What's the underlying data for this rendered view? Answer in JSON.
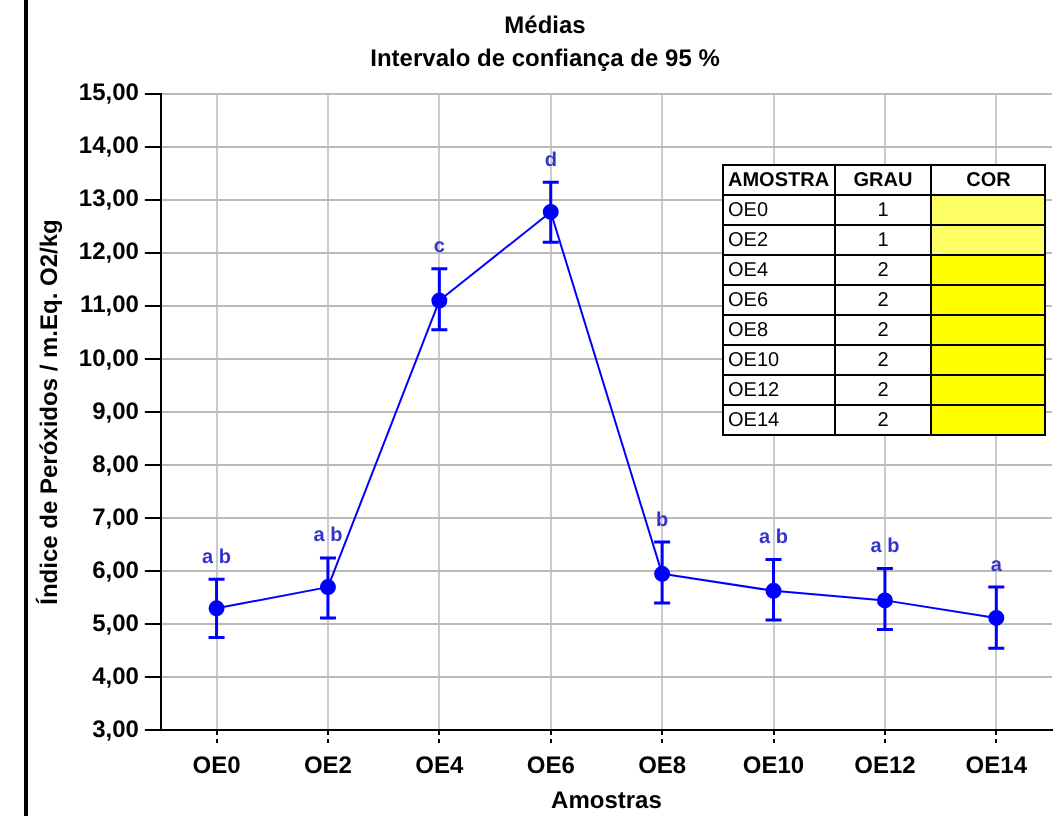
{
  "chart_data": [
    {
      "type": "line",
      "title": "Médias",
      "subtitle": "Intervalo de confiança de 95 %",
      "xlabel": "Amostras",
      "ylabel": "Índice de Peróxidos / m.Eq. O2/kg",
      "categories": [
        "OE0",
        "OE2",
        "OE4",
        "OE6",
        "OE8",
        "OE10",
        "OE12",
        "OE14"
      ],
      "series": [
        {
          "color": "#0000ff",
          "values": [
            5.3,
            5.7,
            11.1,
            12.77,
            5.95,
            5.63,
            5.45,
            5.12
          ],
          "errors": [
            [
              4.75,
              5.85
            ],
            [
              5.12,
              6.25
            ],
            [
              10.55,
              11.7
            ],
            [
              12.2,
              13.33
            ],
            [
              5.4,
              6.55
            ],
            [
              5.08,
              6.22
            ],
            [
              4.9,
              6.05
            ],
            [
              4.55,
              5.7
            ]
          ]
        }
      ],
      "ylim": [
        3,
        15
      ],
      "yticks": [
        {
          "value": 3,
          "label": "3,00"
        },
        {
          "value": 4,
          "label": "4,00"
        },
        {
          "value": 5,
          "label": "5,00"
        },
        {
          "value": 6,
          "label": "6,00"
        },
        {
          "value": 7,
          "label": "7,00"
        },
        {
          "value": 8,
          "label": "8,00"
        },
        {
          "value": 9,
          "label": "9,00"
        },
        {
          "value": 10,
          "label": "10,00"
        },
        {
          "value": 11,
          "label": "11,00"
        },
        {
          "value": 12,
          "label": "12,00"
        },
        {
          "value": 13,
          "label": "13,00"
        },
        {
          "value": 14,
          "label": "14,00"
        },
        {
          "value": 15,
          "label": "15,00"
        }
      ],
      "annotations": [
        {
          "text": "a b",
          "x": "OE0",
          "y": 5.85
        },
        {
          "text": "a b",
          "x": "OE2",
          "y": 6.25
        },
        {
          "text": "c",
          "x": "OE4",
          "y": 11.7
        },
        {
          "text": "d",
          "x": "OE6",
          "y": 13.33
        },
        {
          "text": "b",
          "x": "OE8",
          "y": 6.55
        },
        {
          "text": "a b",
          "x": "OE10",
          "y": 6.22
        },
        {
          "text": "a b",
          "x": "OE12",
          "y": 6.05
        },
        {
          "text": "a",
          "x": "OE14",
          "y": 5.7
        }
      ],
      "grid": true,
      "legend": false,
      "marker": "circle",
      "line_style": "solid"
    },
    {
      "type": "other",
      "categories": [
        "AMOSTRA",
        "GRAU",
        "COR"
      ],
      "y_categories": [
        "OE0",
        "OE2",
        "OE4",
        "OE6",
        "OE8",
        "OE10",
        "OE12",
        "OE14"
      ],
      "cell_labels": [
        [
          "1"
        ],
        [
          "1"
        ],
        [
          "2"
        ],
        [
          "2"
        ],
        [
          "2"
        ],
        [
          "2"
        ],
        [
          "2"
        ],
        [
          "2"
        ]
      ],
      "colors": [
        "#ffff66",
        "#ffff66",
        "#ffff00",
        "#ffff00",
        "#ffff00",
        "#ffff00",
        "#ffff00",
        "#ffff00"
      ]
    }
  ]
}
